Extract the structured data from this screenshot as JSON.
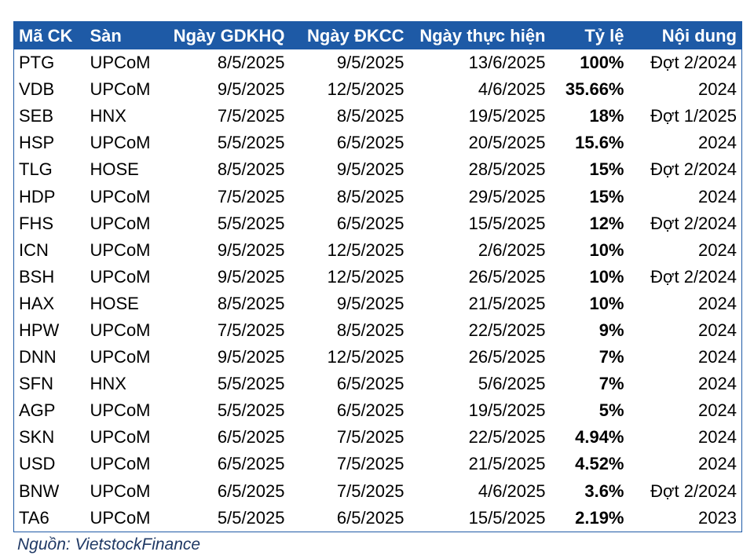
{
  "table": {
    "header": [
      "Mã CK",
      "Sàn",
      "Ngày GDKHQ",
      "Ngày ĐKCC",
      "Ngày thực hiện",
      "Tỷ lệ",
      "Nội dung"
    ],
    "rows": [
      [
        "PTG",
        "UPCoM",
        "8/5/2025",
        "9/5/2025",
        "13/6/2025",
        "100%",
        "Đợt 2/2024"
      ],
      [
        "VDB",
        "UPCoM",
        "9/5/2025",
        "12/5/2025",
        "4/6/2025",
        "35.66%",
        "2024"
      ],
      [
        "SEB",
        "HNX",
        "7/5/2025",
        "8/5/2025",
        "19/5/2025",
        "18%",
        "Đợt 1/2025"
      ],
      [
        "HSP",
        "UPCoM",
        "5/5/2025",
        "6/5/2025",
        "20/5/2025",
        "15.6%",
        "2024"
      ],
      [
        "TLG",
        "HOSE",
        "8/5/2025",
        "9/5/2025",
        "28/5/2025",
        "15%",
        "Đợt 2/2024"
      ],
      [
        "HDP",
        "UPCoM",
        "7/5/2025",
        "8/5/2025",
        "29/5/2025",
        "15%",
        "2024"
      ],
      [
        "FHS",
        "UPCoM",
        "5/5/2025",
        "6/5/2025",
        "15/5/2025",
        "12%",
        "Đợt 2/2024"
      ],
      [
        "ICN",
        "UPCoM",
        "9/5/2025",
        "12/5/2025",
        "2/6/2025",
        "10%",
        "2024"
      ],
      [
        "BSH",
        "UPCoM",
        "9/5/2025",
        "12/5/2025",
        "26/5/2025",
        "10%",
        "Đợt 2/2024"
      ],
      [
        "HAX",
        "HOSE",
        "8/5/2025",
        "9/5/2025",
        "21/5/2025",
        "10%",
        "2024"
      ],
      [
        "HPW",
        "UPCoM",
        "7/5/2025",
        "8/5/2025",
        "22/5/2025",
        "9%",
        "2024"
      ],
      [
        "DNN",
        "UPCoM",
        "9/5/2025",
        "12/5/2025",
        "26/5/2025",
        "7%",
        "2024"
      ],
      [
        "SFN",
        "HNX",
        "5/5/2025",
        "6/5/2025",
        "5/6/2025",
        "7%",
        "2024"
      ],
      [
        "AGP",
        "UPCoM",
        "5/5/2025",
        "6/5/2025",
        "19/5/2025",
        "5%",
        "2024"
      ],
      [
        "SKN",
        "UPCoM",
        "6/5/2025",
        "7/5/2025",
        "22/5/2025",
        "4.94%",
        "2024"
      ],
      [
        "USD",
        "UPCoM",
        "6/5/2025",
        "7/5/2025",
        "21/5/2025",
        "4.52%",
        "2024"
      ],
      [
        "BNW",
        "UPCoM",
        "6/5/2025",
        "7/5/2025",
        "4/6/2025",
        "3.6%",
        "Đợt 2/2024"
      ],
      [
        "TA6",
        "UPCoM",
        "5/5/2025",
        "6/5/2025",
        "15/5/2025",
        "2.19%",
        "2023"
      ]
    ]
  },
  "source": "Nguồn: VietstockFinance"
}
